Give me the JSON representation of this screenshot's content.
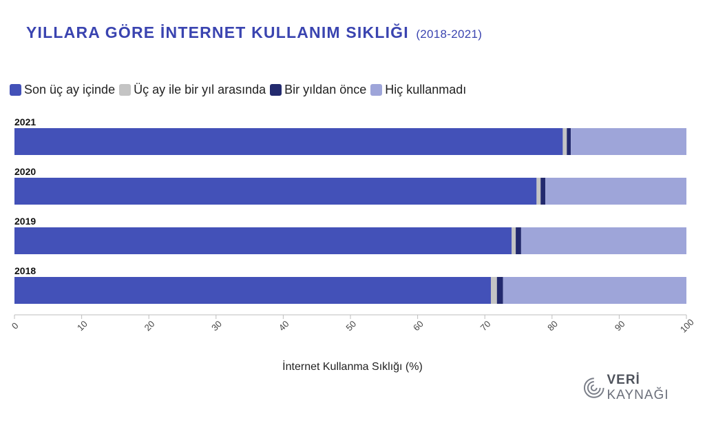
{
  "title": {
    "main": "YILLARA GÖRE İNTERNET KULLANIM SIKLIĞI",
    "sub": "(2018-2021)"
  },
  "colors": {
    "title": "#3a44b0",
    "series": [
      "#4351b8",
      "#c4c4c4",
      "#232a6e",
      "#9ea5d9"
    ]
  },
  "legend": [
    {
      "label": "Son üç ay içinde",
      "color": "#4351b8"
    },
    {
      "label": "Üç ay ile bir yıl arasında",
      "color": "#c4c4c4"
    },
    {
      "label": "Bir yıldan önce",
      "color": "#232a6e"
    },
    {
      "label": "Hiç kullanmadı",
      "color": "#9ea5d9"
    }
  ],
  "chart_data": {
    "type": "bar",
    "orientation": "horizontal",
    "stacked": true,
    "categories": [
      "2021",
      "2020",
      "2019",
      "2018"
    ],
    "series": [
      {
        "name": "Son üç ay içinde",
        "color": "#4351b8",
        "values": [
          81.6,
          77.7,
          74.0,
          70.9
        ]
      },
      {
        "name": "Üç ay ile bir yıl arasında",
        "color": "#c4c4c4",
        "values": [
          0.6,
          0.6,
          0.6,
          0.9
        ]
      },
      {
        "name": "Bir yıldan önce",
        "color": "#232a6e",
        "values": [
          0.6,
          0.7,
          0.8,
          0.9
        ]
      },
      {
        "name": "Hiç kullanmadı",
        "color": "#9ea5d9",
        "values": [
          17.2,
          21.0,
          24.6,
          27.3
        ]
      }
    ],
    "xlabel": "İnternet Kullanma Sıklığı (%)",
    "xlim": [
      0,
      100
    ],
    "xticks": [
      "0",
      "10",
      "20",
      "30",
      "40",
      "50",
      "60",
      "70",
      "80",
      "90",
      "100"
    ],
    "legend_position": "top-left",
    "grid": false
  },
  "logo": {
    "bold": "VERİ",
    "rest": " KAYNAĞI"
  }
}
